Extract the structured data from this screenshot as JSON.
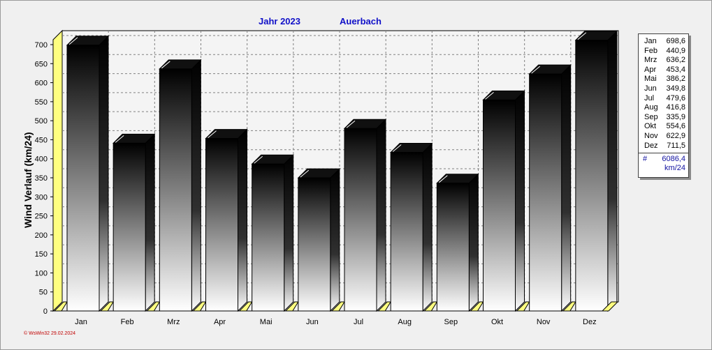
{
  "chart_data": {
    "type": "bar",
    "title": "Jahr  2023",
    "subtitle": "Auerbach",
    "ylabel": "Wind Verlauf  (km/24)",
    "categories": [
      "Jan",
      "Feb",
      "Mrz",
      "Apr",
      "Mai",
      "Jun",
      "Jul",
      "Aug",
      "Sep",
      "Okt",
      "Nov",
      "Dez"
    ],
    "values": [
      698.6,
      440.9,
      636.2,
      453.4,
      386.2,
      349.8,
      479.6,
      416.8,
      335.9,
      554.6,
      622.9,
      711.5
    ],
    "value_labels": [
      "698,6",
      "440,9",
      "636,2",
      "453,4",
      "386,2",
      "349,8",
      "479,6",
      "416,8",
      "335,9",
      "554,6",
      "622,9",
      "711,5"
    ],
    "ylim": [
      0,
      700
    ],
    "yticks": [
      "0",
      "50",
      "100",
      "150",
      "200",
      "250",
      "300",
      "350",
      "400",
      "450",
      "500",
      "550",
      "600",
      "650",
      "700"
    ],
    "grid": true,
    "legend_position": "right",
    "total_symbol": "#",
    "total": "6086,4",
    "total_unit": "km/24",
    "colors": {
      "bar_top": "#000000",
      "bar_bottom": "#ffffff",
      "floor": "#ffff80",
      "grid": "#808080",
      "title": "#1010c8",
      "footer": "#c00000"
    }
  },
  "footer": "© WsWin32  29.02.2024"
}
